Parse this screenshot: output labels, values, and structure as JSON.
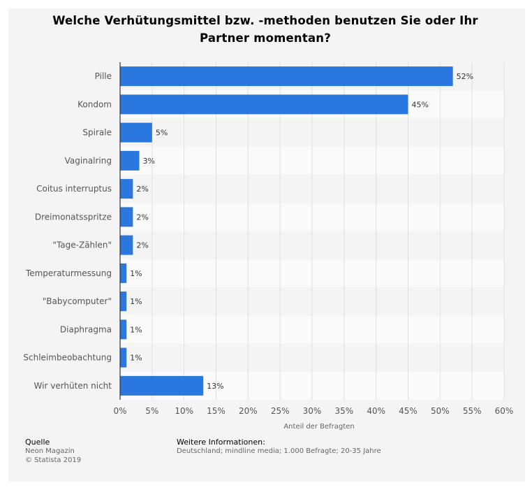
{
  "chart_data": {
    "type": "bar",
    "orientation": "horizontal",
    "title": "Welche Verhütungsmittel bzw. -methoden benutzen Sie oder Ihr Partner momentan?",
    "xlabel": "Anteil der Befragten",
    "categories": [
      "Pille",
      "Kondom",
      "Spirale",
      "Vaginalring",
      "Coitus interruptus",
      "Dreimonatsspritze",
      "\"Tage-Zählen\"",
      "Temperaturmessung",
      "\"Babycomputer\"",
      "Diaphragma",
      "Schleimbeobachtung",
      "Wir verhüten nicht"
    ],
    "values": [
      52,
      45,
      5,
      3,
      2,
      2,
      2,
      1,
      1,
      1,
      1,
      13
    ],
    "value_suffix": "%",
    "xlim": [
      0,
      60
    ],
    "xticks": [
      0,
      5,
      10,
      15,
      20,
      25,
      30,
      35,
      40,
      45,
      50,
      55,
      60
    ],
    "grid": true,
    "bar_color": "#2a77e0"
  },
  "footer": {
    "source_heading": "Quelle",
    "source_lines": [
      "Neon Magazin",
      "© Statista 2019"
    ],
    "info_heading": "Weitere Informationen:",
    "info_text": "Deutschland; mindline media; 1.000 Befragte; 20-35 Jahre"
  }
}
